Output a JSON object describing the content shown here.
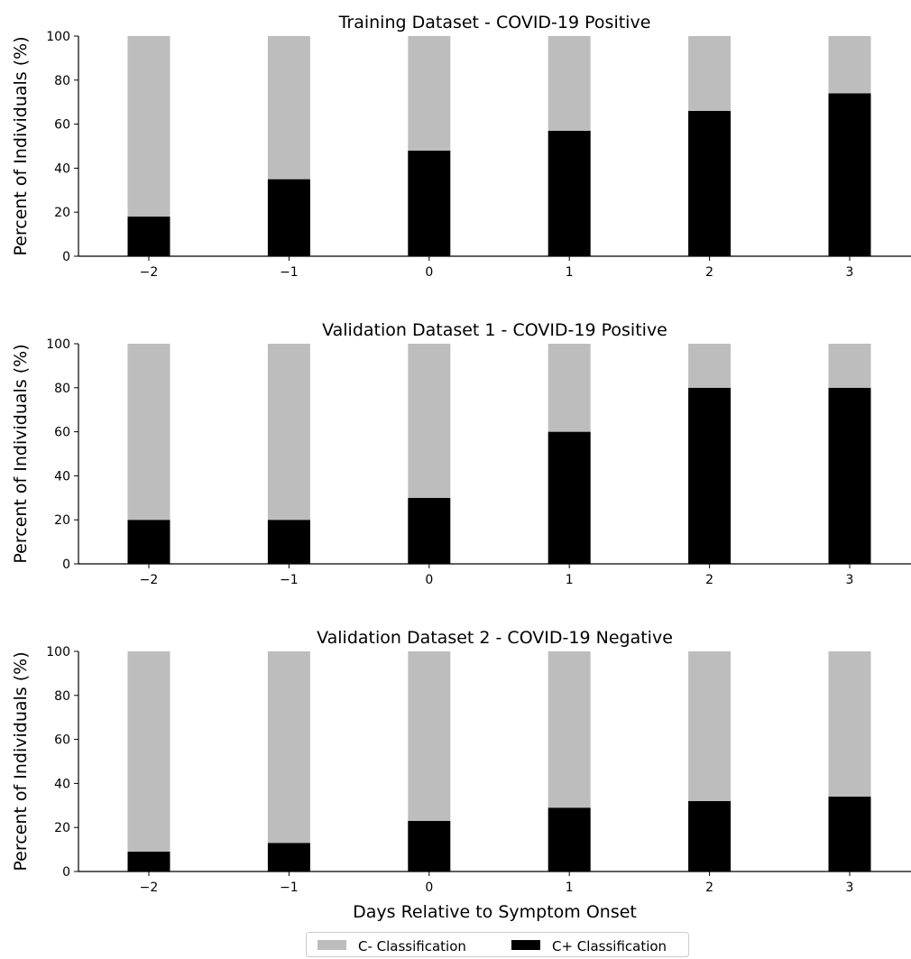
{
  "chart_data": [
    {
      "type": "bar",
      "stacked": true,
      "title": "Training Dataset - COVID-19 Positive",
      "xlabel": "",
      "ylabel": "Percent of Individuals (%)",
      "categories": [
        "−2",
        "−1",
        "0",
        "1",
        "2",
        "3"
      ],
      "x": [
        -2,
        -1,
        0,
        1,
        2,
        3
      ],
      "ylim": [
        0,
        100
      ],
      "yticks": [
        0,
        20,
        40,
        60,
        80,
        100
      ],
      "series": [
        {
          "name": "C+ Classification",
          "color": "#000000",
          "values": [
            18,
            35,
            48,
            57,
            66,
            74
          ]
        },
        {
          "name": "C- Classification",
          "color": "#bdbdbd",
          "values": [
            82,
            65,
            52,
            43,
            34,
            26
          ]
        }
      ],
      "grid": false
    },
    {
      "type": "bar",
      "stacked": true,
      "title": "Validation Dataset 1 - COVID-19 Positive",
      "xlabel": "",
      "ylabel": "Percent of Individuals (%)",
      "categories": [
        "−2",
        "−1",
        "0",
        "1",
        "2",
        "3"
      ],
      "x": [
        -2,
        -1,
        0,
        1,
        2,
        3
      ],
      "ylim": [
        0,
        100
      ],
      "yticks": [
        0,
        20,
        40,
        60,
        80,
        100
      ],
      "series": [
        {
          "name": "C+ Classification",
          "color": "#000000",
          "values": [
            20,
            20,
            30,
            60,
            80,
            80
          ]
        },
        {
          "name": "C- Classification",
          "color": "#bdbdbd",
          "values": [
            80,
            80,
            70,
            40,
            20,
            20
          ]
        }
      ],
      "grid": false
    },
    {
      "type": "bar",
      "stacked": true,
      "title": "Validation Dataset 2 - COVID-19 Negative",
      "xlabel": "Days Relative to Symptom Onset",
      "ylabel": "Percent of Individuals (%)",
      "categories": [
        "−2",
        "−1",
        "0",
        "1",
        "2",
        "3"
      ],
      "x": [
        -2,
        -1,
        0,
        1,
        2,
        3
      ],
      "ylim": [
        0,
        100
      ],
      "yticks": [
        0,
        20,
        40,
        60,
        80,
        100
      ],
      "series": [
        {
          "name": "C+ Classification",
          "color": "#000000",
          "values": [
            9,
            13,
            23,
            29,
            32,
            34
          ]
        },
        {
          "name": "C- Classification",
          "color": "#bdbdbd",
          "values": [
            91,
            87,
            77,
            71,
            68,
            66
          ]
        }
      ],
      "grid": false
    }
  ],
  "legend": {
    "placement": "bottom-center",
    "items": [
      {
        "label": "C- Classification",
        "color": "#bdbdbd"
      },
      {
        "label": "C+ Classification",
        "color": "#000000"
      }
    ]
  }
}
